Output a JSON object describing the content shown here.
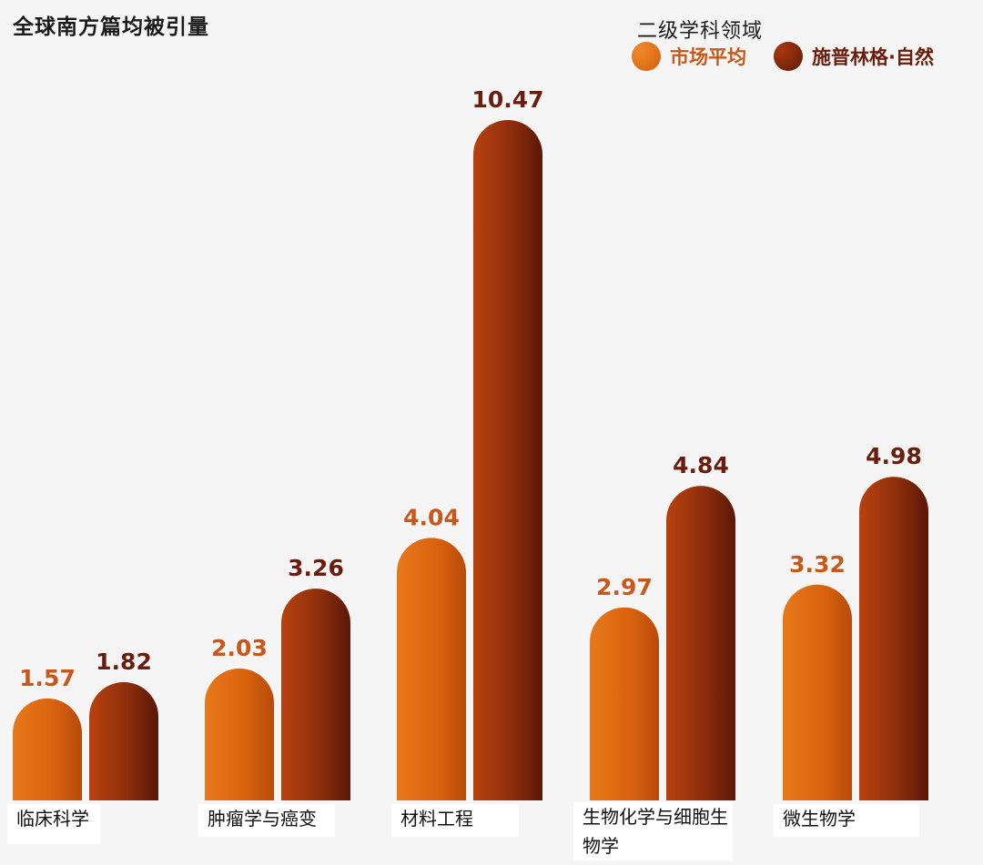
{
  "chart_data": {
    "type": "bar",
    "title": "全球南方篇均被引量",
    "legend_title": "二级学科领域",
    "categories": [
      "临床科学",
      "肿瘤学与癌变",
      "材料工程",
      "生物化学与细胞生物学",
      "微生物学"
    ],
    "series": [
      {
        "name": "市场平均",
        "values": [
          1.57,
          2.03,
          4.04,
          2.97,
          3.32
        ],
        "color": "#e06a10",
        "label_color": "#c8581a"
      },
      {
        "name": "施普林格·自然",
        "values": [
          1.82,
          3.26,
          10.47,
          4.84,
          4.98
        ],
        "color": "#8a2a0c",
        "label_color": "#6b1d0d"
      }
    ],
    "value_labels": [
      [
        "1.57",
        "2.03",
        "4.04",
        "2.97",
        "3.32"
      ],
      [
        "1.82",
        "3.26",
        "10.47",
        "4.84",
        "4.98"
      ]
    ],
    "ylim": [
      0,
      11
    ],
    "grid": false,
    "legend_position": "top-right"
  }
}
